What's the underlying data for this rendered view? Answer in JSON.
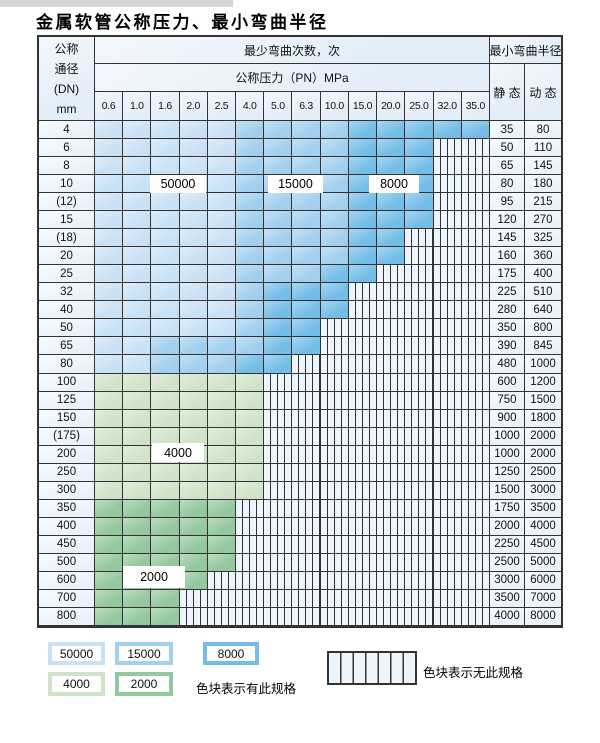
{
  "page": {
    "title": "金属软管公称压力、最小弯曲半径"
  },
  "colors": {
    "cline": "#333333",
    "chatch": "#eef4fb",
    "cc50000": "#c9e1f5",
    "cc15000": "#a2cfee",
    "cc8000": "#74bde7",
    "cc4000": "#d0e3c8",
    "cc2000": "#93c79d"
  },
  "table": {
    "corner": {
      "line1": "公称",
      "line2": "通径",
      "line3": "(DN)",
      "line4": "mm"
    },
    "bend_header": "最少弯曲次数，次",
    "pressure_header": "公称压力（PN）MPa",
    "radius_header": "最小弯曲半径",
    "static_label": "静 态",
    "dynamic_label": "动 态",
    "pressures": [
      "0.6",
      "1.0",
      "1.6",
      "2.0",
      "2.5",
      "4.0",
      "5.0",
      "6.3",
      "10.0",
      "15.0",
      "20.0",
      "25.0",
      "32.0",
      "35.0"
    ],
    "rows": [
      {
        "dn": "4",
        "static": "35",
        "dynamic": "80",
        "spans": [
          [
            "50000",
            5
          ],
          [
            "15000",
            4
          ],
          [
            "8000",
            5
          ]
        ]
      },
      {
        "dn": "6",
        "static": "50",
        "dynamic": "110",
        "spans": [
          [
            "50000",
            5
          ],
          [
            "15000",
            4
          ],
          [
            "8000",
            3
          ],
          [
            "none",
            2
          ]
        ]
      },
      {
        "dn": "8",
        "static": "65",
        "dynamic": "145",
        "spans": [
          [
            "50000",
            5
          ],
          [
            "15000",
            4
          ],
          [
            "8000",
            3
          ],
          [
            "none",
            2
          ]
        ]
      },
      {
        "dn": "10",
        "static": "80",
        "dynamic": "180",
        "spans": [
          [
            "50000",
            5
          ],
          [
            "15000",
            4
          ],
          [
            "8000",
            3
          ],
          [
            "none",
            2
          ]
        ]
      },
      {
        "dn": "(12)",
        "static": "95",
        "dynamic": "215",
        "spans": [
          [
            "50000",
            5
          ],
          [
            "15000",
            4
          ],
          [
            "8000",
            3
          ],
          [
            "none",
            2
          ]
        ]
      },
      {
        "dn": "15",
        "static": "120",
        "dynamic": "270",
        "spans": [
          [
            "50000",
            5
          ],
          [
            "15000",
            4
          ],
          [
            "8000",
            3
          ],
          [
            "none",
            2
          ]
        ]
      },
      {
        "dn": "(18)",
        "static": "145",
        "dynamic": "325",
        "spans": [
          [
            "50000",
            5
          ],
          [
            "15000",
            4
          ],
          [
            "8000",
            2
          ],
          [
            "none",
            3
          ]
        ]
      },
      {
        "dn": "20",
        "static": "160",
        "dynamic": "360",
        "spans": [
          [
            "50000",
            5
          ],
          [
            "15000",
            4
          ],
          [
            "8000",
            2
          ],
          [
            "none",
            3
          ]
        ]
      },
      {
        "dn": "25",
        "static": "175",
        "dynamic": "400",
        "spans": [
          [
            "50000",
            5
          ],
          [
            "15000",
            3
          ],
          [
            "8000",
            2
          ],
          [
            "none",
            4
          ]
        ]
      },
      {
        "dn": "32",
        "static": "225",
        "dynamic": "510",
        "spans": [
          [
            "50000",
            5
          ],
          [
            "15000",
            1
          ],
          [
            "8000",
            3
          ],
          [
            "none",
            5
          ]
        ]
      },
      {
        "dn": "40",
        "static": "280",
        "dynamic": "640",
        "spans": [
          [
            "50000",
            5
          ],
          [
            "15000",
            1
          ],
          [
            "8000",
            3
          ],
          [
            "none",
            5
          ]
        ]
      },
      {
        "dn": "50",
        "static": "350",
        "dynamic": "800",
        "spans": [
          [
            "50000",
            5
          ],
          [
            "15000",
            1
          ],
          [
            "8000",
            2
          ],
          [
            "none",
            6
          ]
        ]
      },
      {
        "dn": "65",
        "static": "390",
        "dynamic": "845",
        "spans": [
          [
            "50000",
            2
          ],
          [
            "15000",
            4
          ],
          [
            "8000",
            2
          ],
          [
            "none",
            6
          ]
        ]
      },
      {
        "dn": "80",
        "static": "480",
        "dynamic": "1000",
        "spans": [
          [
            "50000",
            2
          ],
          [
            "15000",
            3
          ],
          [
            "8000",
            2
          ],
          [
            "none",
            7
          ]
        ]
      },
      {
        "dn": "100",
        "static": "600",
        "dynamic": "1200",
        "spans": [
          [
            "4000",
            6
          ],
          [
            "none",
            8
          ]
        ]
      },
      {
        "dn": "125",
        "static": "750",
        "dynamic": "1500",
        "spans": [
          [
            "4000",
            6
          ],
          [
            "none",
            8
          ]
        ]
      },
      {
        "dn": "150",
        "static": "900",
        "dynamic": "1800",
        "spans": [
          [
            "4000",
            6
          ],
          [
            "none",
            8
          ]
        ]
      },
      {
        "dn": "(175)",
        "static": "1000",
        "dynamic": "2000",
        "spans": [
          [
            "4000",
            6
          ],
          [
            "none",
            8
          ]
        ]
      },
      {
        "dn": "200",
        "static": "1000",
        "dynamic": "2000",
        "spans": [
          [
            "4000",
            6
          ],
          [
            "none",
            8
          ]
        ]
      },
      {
        "dn": "250",
        "static": "1250",
        "dynamic": "2500",
        "spans": [
          [
            "4000",
            6
          ],
          [
            "none",
            8
          ]
        ]
      },
      {
        "dn": "300",
        "static": "1500",
        "dynamic": "3000",
        "spans": [
          [
            "4000",
            6
          ],
          [
            "none",
            8
          ]
        ]
      },
      {
        "dn": "350",
        "static": "1750",
        "dynamic": "3500",
        "spans": [
          [
            "2000",
            5
          ],
          [
            "none",
            9
          ]
        ]
      },
      {
        "dn": "400",
        "static": "2000",
        "dynamic": "4000",
        "spans": [
          [
            "2000",
            5
          ],
          [
            "none",
            9
          ]
        ]
      },
      {
        "dn": "450",
        "static": "2250",
        "dynamic": "4500",
        "spans": [
          [
            "2000",
            5
          ],
          [
            "none",
            9
          ]
        ]
      },
      {
        "dn": "500",
        "static": "2500",
        "dynamic": "5000",
        "spans": [
          [
            "2000",
            5
          ],
          [
            "none",
            9
          ]
        ]
      },
      {
        "dn": "600",
        "static": "3000",
        "dynamic": "6000",
        "spans": [
          [
            "2000",
            4
          ],
          [
            "none",
            10
          ]
        ]
      },
      {
        "dn": "700",
        "static": "3500",
        "dynamic": "7000",
        "spans": [
          [
            "2000",
            3
          ],
          [
            "none",
            11
          ]
        ]
      },
      {
        "dn": "800",
        "static": "4000",
        "dynamic": "8000",
        "spans": [
          [
            "2000",
            3
          ],
          [
            "none",
            11
          ]
        ]
      }
    ]
  },
  "grid_labels": {
    "l50000": "50000",
    "l15000": "15000",
    "l8000": "8000",
    "l4000": "4000",
    "l2000": "2000"
  },
  "legend": {
    "items": [
      {
        "label": "50000"
      },
      {
        "label": "15000"
      },
      {
        "label": "8000"
      },
      {
        "label": "4000"
      },
      {
        "label": "2000"
      }
    ],
    "has_spec_text": "色块表示有此规格",
    "no_spec_text": "色块表示无此规格"
  }
}
